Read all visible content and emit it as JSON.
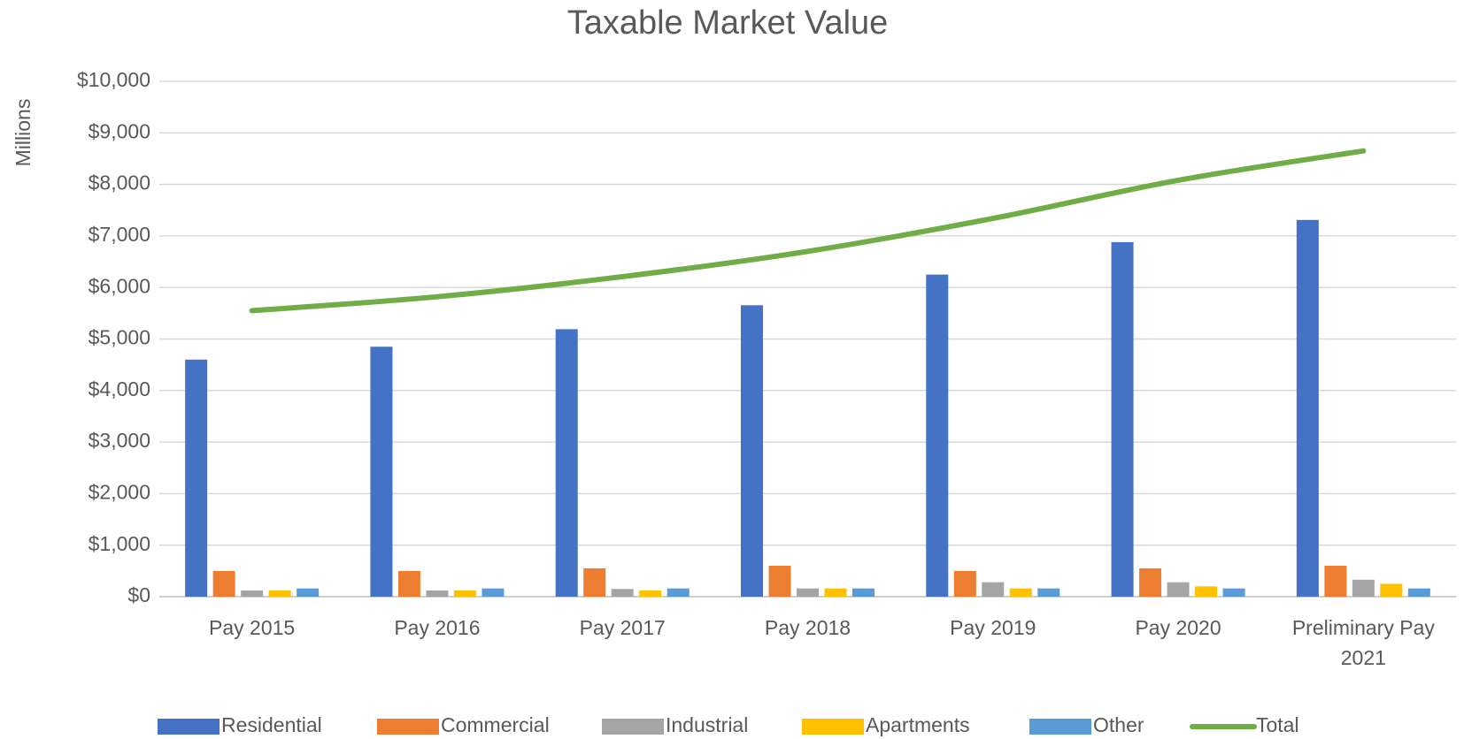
{
  "chart_data": {
    "type": "bar",
    "title": "Taxable Market Value",
    "y_axis_label": "Millions",
    "categories": [
      "Pay 2015",
      "Pay 2016",
      "Pay 2017",
      "Pay 2018",
      "Pay 2019",
      "Pay 2020",
      "Preliminary Pay 2021"
    ],
    "series": [
      {
        "name": "Residential",
        "color": "#4472c4",
        "type": "bar",
        "values": [
          4600,
          4850,
          5190,
          5655,
          6250,
          6880,
          7310
        ]
      },
      {
        "name": "Commercial",
        "color": "#ed7d31",
        "type": "bar",
        "values": [
          500,
          500,
          550,
          600,
          500,
          550,
          600
        ]
      },
      {
        "name": "Industrial",
        "color": "#a5a5a5",
        "type": "bar",
        "values": [
          120,
          120,
          150,
          160,
          280,
          280,
          330
        ]
      },
      {
        "name": "Apartments",
        "color": "#ffc000",
        "type": "bar",
        "values": [
          120,
          120,
          120,
          160,
          160,
          200,
          250
        ]
      },
      {
        "name": "Other",
        "color": "#5b9bd5",
        "type": "bar",
        "values": [
          160,
          160,
          160,
          160,
          160,
          160,
          160
        ]
      },
      {
        "name": "Total",
        "color": "#70ad47",
        "type": "line",
        "values": [
          5550,
          5820,
          6210,
          6700,
          7340,
          8080,
          8650
        ]
      }
    ],
    "ylim": [
      0,
      10000
    ],
    "yticks": [
      {
        "value": 0,
        "label": "$0"
      },
      {
        "value": 1000,
        "label": "$1,000"
      },
      {
        "value": 2000,
        "label": "$2,000"
      },
      {
        "value": 3000,
        "label": "$3,000"
      },
      {
        "value": 4000,
        "label": "$4,000"
      },
      {
        "value": 5000,
        "label": "$5,000"
      },
      {
        "value": 6000,
        "label": "$6,000"
      },
      {
        "value": 7000,
        "label": "$7,000"
      },
      {
        "value": 8000,
        "label": "$8,000"
      },
      {
        "value": 9000,
        "label": "$9,000"
      },
      {
        "value": 10000,
        "label": "$10,000"
      }
    ],
    "grid": true,
    "legend": "bottom"
  }
}
